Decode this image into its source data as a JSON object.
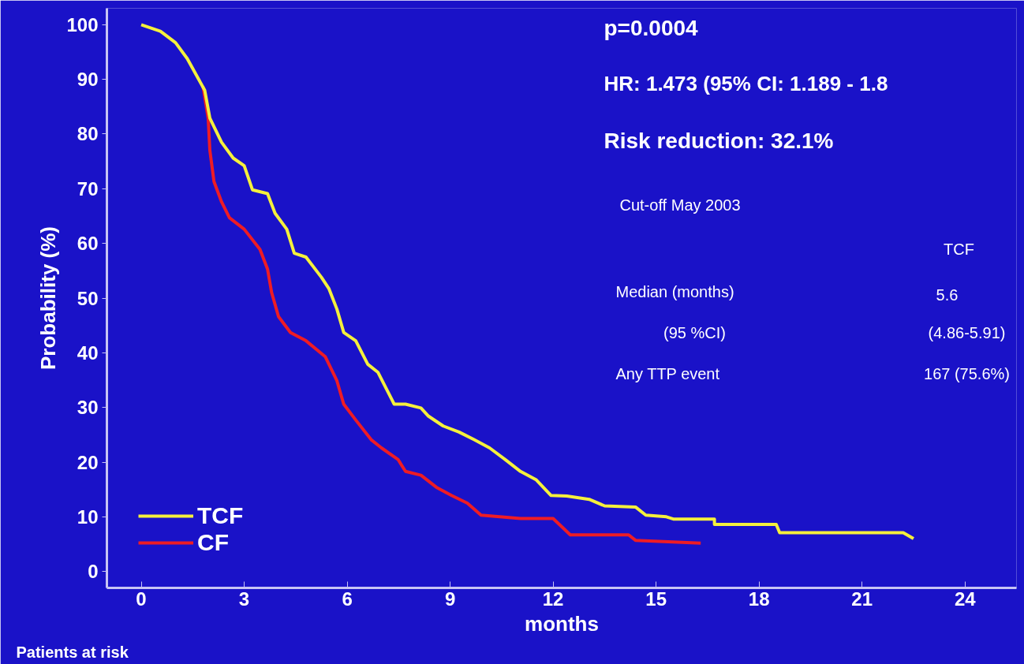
{
  "chart_data": {
    "type": "line",
    "xlabel": "months",
    "ylabel": "Probability (%)",
    "x": [
      0,
      0.56,
      1.0,
      1.34,
      1.85,
      2.0,
      2.34,
      2.68,
      3.0,
      3.24,
      3.68,
      3.9,
      4.24,
      4.46,
      4.8,
      5.25,
      5.47,
      5.7,
      5.9,
      6.25,
      6.6,
      6.9,
      7.37,
      7.7,
      8.15,
      8.37,
      8.8,
      9.26,
      9.7,
      10.15,
      10.6,
      11.05,
      11.5,
      11.94,
      12.4,
      13.05,
      13.5,
      14.4,
      14.7,
      15.3,
      15.5,
      16.7,
      16.7,
      18.5,
      18.6,
      22.2,
      22.5
    ],
    "series": [
      {
        "name": "TCF",
        "color": "#f5f03c",
        "values": [
          100,
          98.8,
          96.7,
          93.8,
          88,
          82.9,
          78.5,
          75.6,
          74.2,
          69.8,
          69.1,
          65.5,
          62.6,
          58.2,
          57.5,
          53.8,
          51.7,
          48,
          43.7,
          42.2,
          37.9,
          36.4,
          30.6,
          30.6,
          29.9,
          28.4,
          26.6,
          25.5,
          24.1,
          22.6,
          20.5,
          18.3,
          16.8,
          13.9,
          13.8,
          13.2,
          12,
          11.8,
          10.3,
          10,
          9.6,
          9.6,
          8.6,
          8.6,
          7.1,
          7.1,
          6
        ]
      },
      {
        "name": "CF",
        "color": "#ee1c25",
        "x": [
          1.8,
          1.95,
          2.0,
          2.12,
          2.34,
          2.57,
          3.0,
          3.46,
          3.68,
          3.8,
          4.0,
          4.35,
          4.8,
          5.36,
          5.7,
          5.9,
          6.25,
          6.7,
          7.0,
          7.48,
          7.7,
          8.15,
          8.6,
          9.04,
          9.5,
          9.9,
          11.05,
          12.0,
          12.5,
          14.2,
          14.4,
          16.3
        ],
        "values": [
          88.7,
          82.9,
          77,
          71.3,
          67.6,
          64.7,
          62.6,
          58.9,
          55.3,
          51,
          46.6,
          43.7,
          42.2,
          39.3,
          34.9,
          30.6,
          27.7,
          24.1,
          22.6,
          20.5,
          18.3,
          17.6,
          15.4,
          13.9,
          12.5,
          10.3,
          9.7,
          9.7,
          6.7,
          6.7,
          5.7,
          5.2
        ]
      }
    ],
    "xlim": [
      -1,
      25.5
    ],
    "ylim": [
      -3,
      103
    ],
    "xticks": [
      0,
      3,
      6,
      9,
      12,
      15,
      18,
      21,
      24
    ],
    "yticks": [
      0,
      10,
      20,
      30,
      40,
      50,
      60,
      70,
      80,
      90,
      100
    ],
    "grid": false,
    "legend": "bottom left",
    "marker": "none",
    "line_style": "solid",
    "annotations": [
      "p=0.0004",
      "HR: 1.473 (95% CI: 1.189 - 1.8",
      "Risk reduction: 32.1%",
      "Cut-off May 2003",
      "TCF",
      "Median (months)",
      "5.6",
      "(95 %CI)",
      "(4.86-5.91)",
      "Any TTP event",
      "167 (75.6%)",
      "Patients at risk"
    ]
  }
}
